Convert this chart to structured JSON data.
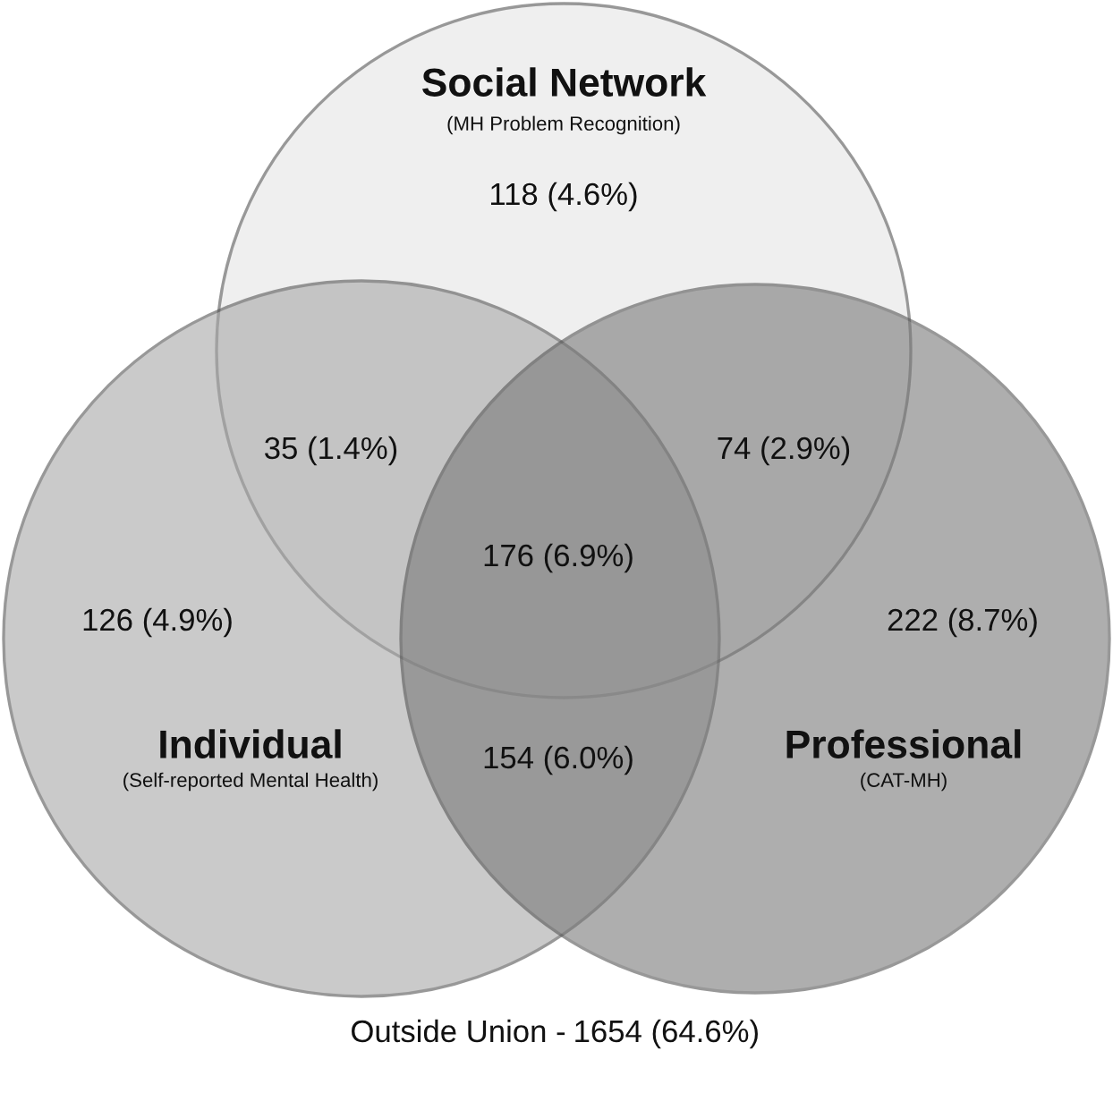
{
  "chart_data": {
    "type": "other",
    "categories": [
      null,
      null,
      null,
      null,
      null,
      null,
      null,
      "Outside Union -"
    ],
    "values": [
      118,
      35,
      74,
      176,
      126,
      222,
      154,
      1654
    ],
    "value_labels": [
      "118 (4.6%)",
      "35 (1.4%)",
      "74 (2.9%)",
      "176 (6.9%)",
      "126 (4.9%)",
      "222 (8.7%)",
      "154 (6.0%)",
      "1654 (64.6%)"
    ],
    "annotations": [
      "Social Network",
      "(MH Problem Recognition)",
      "Individual",
      "(Self-reported Mental Health)",
      "Professional",
      "(CAT-MH)"
    ]
  }
}
